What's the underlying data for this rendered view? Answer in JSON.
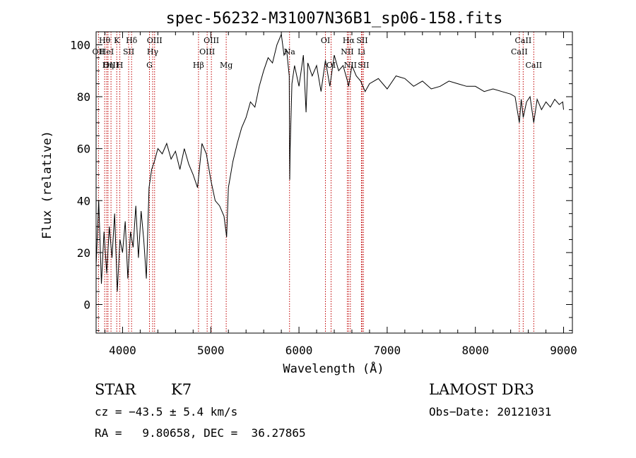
{
  "chart_data": {
    "type": "line",
    "title": "spec-56232-M31007N36B1_sp06-158.fits",
    "xlabel": "Wavelength (Å)",
    "ylabel": "Flux (relative)",
    "xlim": [
      3700,
      9100
    ],
    "ylim": [
      -11,
      105
    ],
    "xticks": [
      4000,
      5000,
      6000,
      7000,
      8000,
      9000
    ],
    "yticks": [
      0,
      20,
      40,
      60,
      80,
      100
    ],
    "grid": false,
    "series": [
      {
        "x": [
          3700,
          3730,
          3760,
          3790,
          3820,
          3850,
          3880,
          3910,
          3940,
          3970,
          4000,
          4030,
          4060,
          4090,
          4120,
          4150,
          4180,
          4210,
          4240,
          4270,
          4300,
          4330,
          4360,
          4400,
          4450,
          4500,
          4550,
          4600,
          4650,
          4700,
          4750,
          4800,
          4850,
          4900,
          4950,
          5000,
          5050,
          5100,
          5150,
          5180,
          5200,
          5250,
          5300,
          5350,
          5400,
          5450,
          5500,
          5550,
          5600,
          5650,
          5700,
          5750,
          5800,
          5830,
          5860,
          5890,
          5895,
          5900,
          5920,
          5950,
          6000,
          6050,
          6080,
          6100,
          6150,
          6200,
          6250,
          6300,
          6350,
          6400,
          6450,
          6500,
          6550,
          6563,
          6600,
          6650,
          6700,
          6750,
          6800,
          6850,
          6900,
          7000,
          7100,
          7200,
          7300,
          7400,
          7500,
          7600,
          7700,
          7800,
          7900,
          8000,
          8100,
          8200,
          8300,
          8400,
          8450,
          8498,
          8520,
          8542,
          8580,
          8620,
          8662,
          8700,
          8750,
          8800,
          8850,
          8900,
          8950,
          8990,
          9000
        ],
        "y": [
          15,
          40,
          8,
          28,
          12,
          30,
          18,
          35,
          5,
          25,
          20,
          32,
          10,
          28,
          22,
          38,
          18,
          36,
          25,
          10,
          45,
          52,
          55,
          60,
          58,
          62,
          56,
          59,
          52,
          60,
          54,
          50,
          45,
          62,
          58,
          48,
          40,
          38,
          34,
          26,
          45,
          55,
          62,
          68,
          72,
          78,
          76,
          84,
          90,
          95,
          93,
          100,
          104,
          96,
          98,
          88,
          48,
          60,
          85,
          92,
          84,
          96,
          74,
          93,
          88,
          92,
          82,
          94,
          84,
          96,
          90,
          92,
          86,
          84,
          92,
          88,
          86,
          82,
          85,
          86,
          87,
          83,
          88,
          87,
          84,
          86,
          83,
          84,
          86,
          85,
          84,
          84,
          82,
          83,
          82,
          81,
          80,
          70,
          79,
          72,
          78,
          80,
          70,
          79,
          75,
          78,
          76,
          79,
          77,
          78,
          75
        ]
      }
    ],
    "lines": [
      {
        "label": "Hθ",
        "x": 3797
      },
      {
        "label": "OII",
        "x": 3727
      },
      {
        "label": "HeI",
        "x": 3820
      },
      {
        "label": "Hη",
        "x": 3835
      },
      {
        "label": "OIII",
        "x": 3869
      },
      {
        "label": "K",
        "x": 3934
      },
      {
        "label": "H",
        "x": 3969
      },
      {
        "label": "SII",
        "x": 4069
      },
      {
        "label": "Hδ",
        "x": 4102
      },
      {
        "label": "OIII",
        "x": 4363
      },
      {
        "label": "Hγ",
        "x": 4341
      },
      {
        "label": "G",
        "x": 4305
      },
      {
        "label": "Hβ",
        "x": 4861
      },
      {
        "label": "OIII",
        "x": 5007
      },
      {
        "label": "OIII",
        "x": 4959
      },
      {
        "label": "Mg",
        "x": 5175
      },
      {
        "label": "Na",
        "x": 5893
      },
      {
        "label": "OI",
        "x": 6300
      },
      {
        "label": "OI",
        "x": 6364
      },
      {
        "label": "Hα",
        "x": 6563
      },
      {
        "label": "NII",
        "x": 6548
      },
      {
        "label": "NII",
        "x": 6583
      },
      {
        "label": "SII",
        "x": 6716
      },
      {
        "label": "Li",
        "x": 6708
      },
      {
        "label": "SII",
        "x": 6731
      },
      {
        "label": "CaII",
        "x": 8542
      },
      {
        "label": "CaII",
        "x": 8498
      },
      {
        "label": "CaII",
        "x": 8662
      }
    ]
  },
  "info": {
    "object_type": "STAR",
    "subclass": "K7",
    "survey": "LAMOST DR3",
    "cz": "cz = −43.5 ± 5.4 km/s",
    "obs_date": "Obs−Date: 20121031",
    "radec": "RA =   9.80658, DEC =  36.27865"
  },
  "colors": {
    "spectrum": "#000000",
    "line_markers": "#c00000"
  }
}
